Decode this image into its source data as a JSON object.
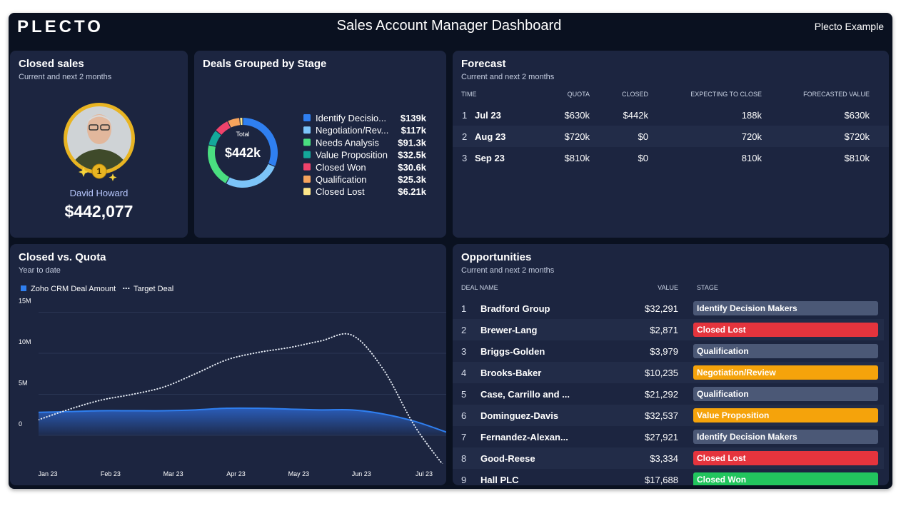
{
  "header": {
    "logo": "PLECTO",
    "title": "Sales Account Manager Dashboard",
    "account": "Plecto Example"
  },
  "closed_sales": {
    "title": "Closed sales",
    "subtitle": "Current and next 2 months",
    "rank": 1,
    "name": "David Howard",
    "amount": "$442,077"
  },
  "chart_data": [
    {
      "type": "donut",
      "title": "Deals Grouped by Stage",
      "center_title": "Total",
      "center_text": "$442k",
      "categories": [
        "Identify Decisio...",
        "Negotiation/Rev...",
        "Needs Analysis",
        "Value Proposition",
        "Closed Won",
        "Qualification",
        "Closed Lost"
      ],
      "values": [
        139000,
        117000,
        91300,
        32500,
        30600,
        25300,
        6210
      ],
      "value_labels": [
        "$139k",
        "$117k",
        "$91.3k",
        "$32.5k",
        "$30.6k",
        "$25.3k",
        "$6.21k"
      ],
      "colors": [
        "#2f7ff0",
        "#7cc4f8",
        "#4ade80",
        "#14a89a",
        "#f0436b",
        "#f6a35c",
        "#fde68a"
      ]
    },
    {
      "type": "line",
      "title": "Closed vs. Quota",
      "subtitle": "Year to date",
      "categories": [
        "Jan 23",
        null,
        "Feb 23",
        null,
        "Mar 23",
        null,
        "Apr 23",
        null,
        "May 23",
        null,
        "Jun 23",
        null,
        "Jul 23",
        null
      ],
      "series": [
        {
          "name": "Zoho CRM Deal Amount",
          "color": "#2f7ff0",
          "area": true,
          "values": [
            2800000,
            2900000,
            3000000,
            3000000,
            3000000,
            3100000,
            3300000,
            3300000,
            3200000,
            3100000,
            3100000,
            2600000,
            1700000,
            400000
          ]
        },
        {
          "name": "Target Deal",
          "color": "#e6ecf5",
          "dotted": true,
          "values": [
            1900000,
            3200000,
            4300000,
            5000000,
            5900000,
            7500000,
            9200000,
            10100000,
            10700000,
            11500000,
            12200000,
            8000000,
            1100000,
            -4100000
          ]
        }
      ],
      "ylim": [
        -4500000,
        15000000
      ],
      "yticks": [
        0,
        {
          "value": 5000000,
          "label": "5M"
        },
        {
          "value": 10000000,
          "label": "10M"
        },
        {
          "value": 15000000,
          "label": "15M"
        }
      ],
      "grid": true,
      "legend": "top-left"
    }
  ],
  "forecast": {
    "title": "Forecast",
    "subtitle": "Current and next 2 months",
    "columns": [
      "TIME",
      "QUOTA",
      "CLOSED",
      "EXPECTING TO CLOSE",
      "FORECASTED VALUE"
    ],
    "rows": [
      [
        1,
        "Jul 23",
        "$630k",
        "$442k",
        "188k",
        "$630k"
      ],
      [
        2,
        "Aug 23",
        "$720k",
        "$0",
        "720k",
        "$720k"
      ],
      [
        3,
        "Sep 23",
        "$810k",
        "$0",
        "810k",
        "$810k"
      ]
    ]
  },
  "opportunities": {
    "title": "Opportunities",
    "subtitle": "Current and next 2 months",
    "columns": [
      "DEAL NAME",
      "VALUE",
      "STAGE"
    ],
    "rows": [
      {
        "rank": 1,
        "name": "Bradford Group",
        "value": "$32,291",
        "stage": "Identify Decision Makers",
        "stage_color": "#4b5876"
      },
      {
        "rank": 2,
        "name": "Brewer-Lang",
        "value": "$2,871",
        "stage": "Closed Lost",
        "stage_color": "#e5343d"
      },
      {
        "rank": 3,
        "name": "Briggs-Golden",
        "value": "$3,979",
        "stage": "Qualification",
        "stage_color": "#4b5876"
      },
      {
        "rank": 4,
        "name": "Brooks-Baker",
        "value": "$10,235",
        "stage": "Negotiation/Review",
        "stage_color": "#f5a30b"
      },
      {
        "rank": 5,
        "name": "Case, Carrillo and ...",
        "value": "$21,292",
        "stage": "Qualification",
        "stage_color": "#4b5876"
      },
      {
        "rank": 6,
        "name": "Dominguez-Davis",
        "value": "$32,537",
        "stage": "Value Proposition",
        "stage_color": "#f5a30b"
      },
      {
        "rank": 7,
        "name": "Fernandez-Alexan...",
        "value": "$27,921",
        "stage": "Identify Decision Makers",
        "stage_color": "#4b5876"
      },
      {
        "rank": 8,
        "name": "Good-Reese",
        "value": "$3,334",
        "stage": "Closed Lost",
        "stage_color": "#e5343d"
      },
      {
        "rank": 9,
        "name": "Hall PLC",
        "value": "$17,688",
        "stage": "Closed Won",
        "stage_color": "#22c55e"
      }
    ]
  }
}
